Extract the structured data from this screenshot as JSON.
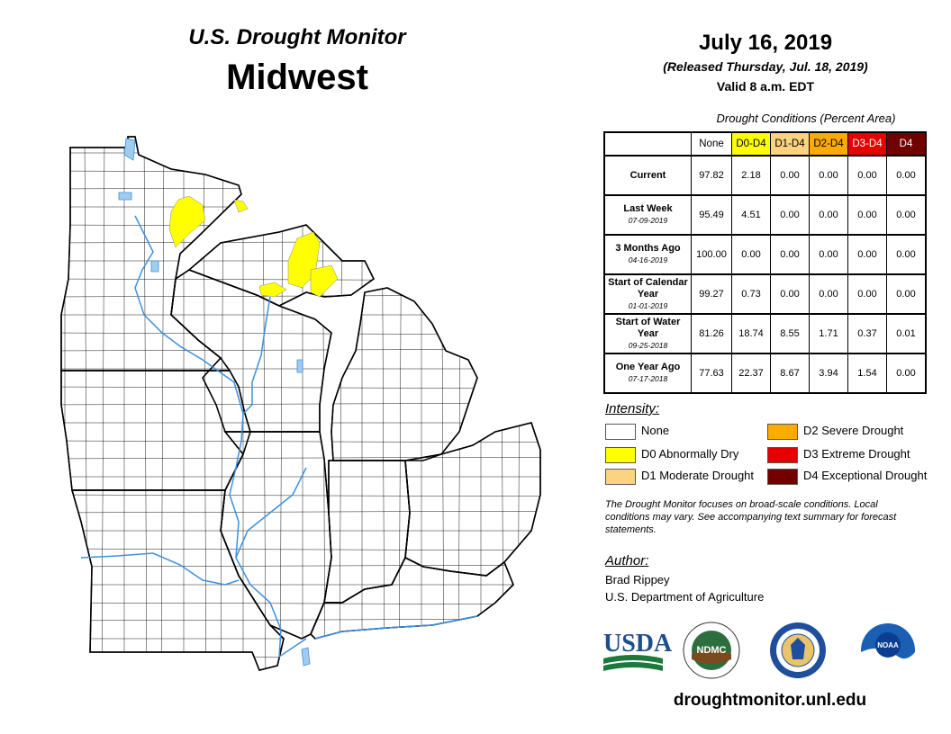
{
  "header": {
    "title": "U.S. Drought Monitor",
    "region": "Midwest",
    "date": "July 16, 2019",
    "released": "(Released Thursday, Jul. 18, 2019)",
    "valid": "Valid 8 a.m. EDT"
  },
  "table": {
    "caption": "Drought Conditions (Percent Area)",
    "columns": [
      {
        "label": "None",
        "color": "#ffffff"
      },
      {
        "label": "D0-D4",
        "color": "#ffff00"
      },
      {
        "label": "D1-D4",
        "color": "#fcd37f"
      },
      {
        "label": "D2-D4",
        "color": "#ffaa00"
      },
      {
        "label": "D3-D4",
        "color": "#e60000"
      },
      {
        "label": "D4",
        "color": "#730000"
      }
    ],
    "rows": [
      {
        "label": "Current",
        "date": "",
        "values": [
          "97.82",
          "2.18",
          "0.00",
          "0.00",
          "0.00",
          "0.00"
        ]
      },
      {
        "label": "Last Week",
        "date": "07-09-2019",
        "values": [
          "95.49",
          "4.51",
          "0.00",
          "0.00",
          "0.00",
          "0.00"
        ]
      },
      {
        "label": "3 Months Ago",
        "date": "04-16-2019",
        "values": [
          "100.00",
          "0.00",
          "0.00",
          "0.00",
          "0.00",
          "0.00"
        ]
      },
      {
        "label": "Start of Calendar Year",
        "date": "01-01-2019",
        "values": [
          "99.27",
          "0.73",
          "0.00",
          "0.00",
          "0.00",
          "0.00"
        ]
      },
      {
        "label": "Start of Water Year",
        "date": "09-25-2018",
        "values": [
          "81.26",
          "18.74",
          "8.55",
          "1.71",
          "0.37",
          "0.01"
        ]
      },
      {
        "label": "One Year Ago",
        "date": "07-17-2018",
        "values": [
          "77.63",
          "22.37",
          "8.67",
          "3.94",
          "1.54",
          "0.00"
        ]
      }
    ]
  },
  "legend": {
    "title": "Intensity:",
    "items": [
      {
        "label": "None",
        "color": "#ffffff"
      },
      {
        "label": "D0 Abnormally Dry",
        "color": "#ffff00"
      },
      {
        "label": "D1 Moderate Drought",
        "color": "#fcd37f"
      },
      {
        "label": "D2 Severe Drought",
        "color": "#ffaa00"
      },
      {
        "label": "D3 Extreme Drought",
        "color": "#e60000"
      },
      {
        "label": "D4 Exceptional Drought",
        "color": "#730000"
      }
    ]
  },
  "note": "The Drought Monitor focuses on broad-scale conditions. Local conditions may vary. See accompanying text summary for forecast statements.",
  "author": {
    "title": "Author:",
    "name": "Brad Rippey",
    "org": "U.S. Department of Agriculture"
  },
  "logos": {
    "usda": "USDA",
    "ndmc": "NDMC",
    "noaa": "NOAA"
  },
  "url": "droughtmonitor.unl.edu",
  "map": {
    "water_color": "#9fcdee",
    "river_color": "#3d8fe0",
    "d0_color": "#ffff00",
    "icon": "midwest-region-map"
  }
}
